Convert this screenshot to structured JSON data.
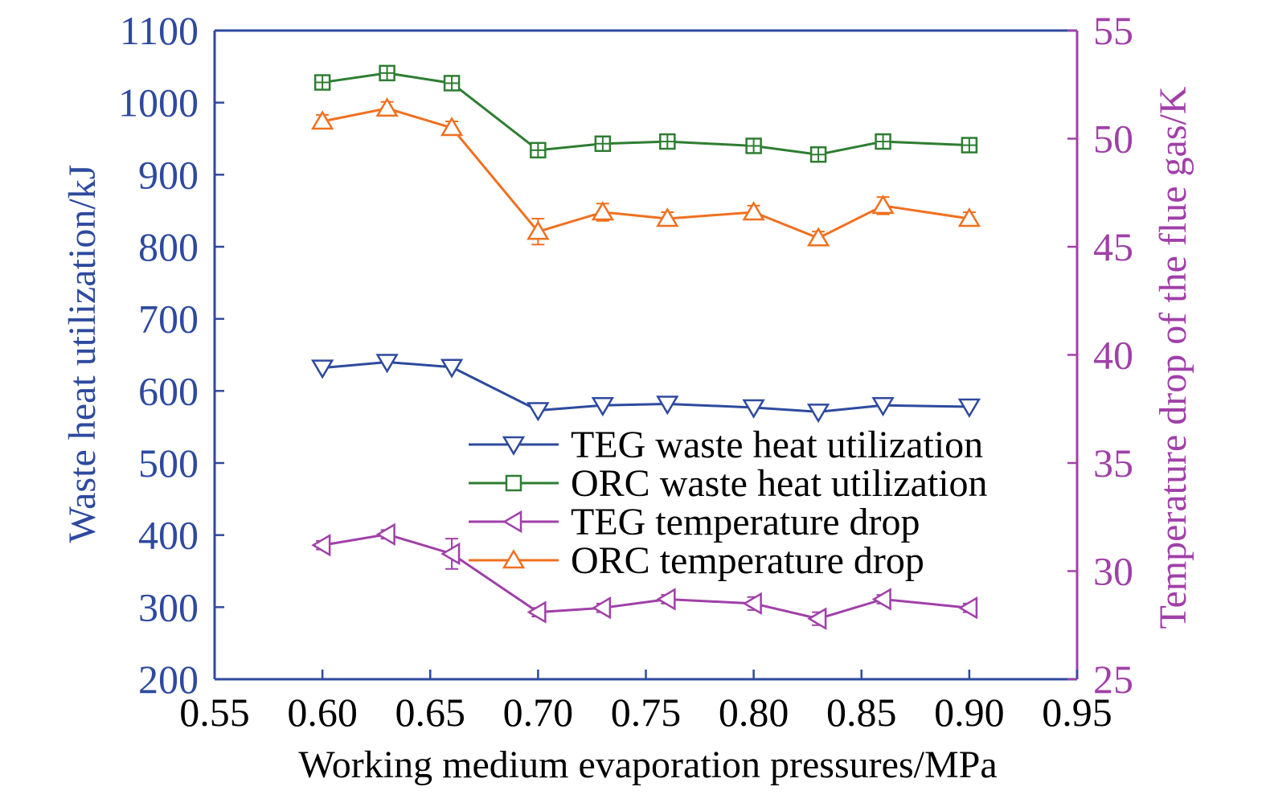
{
  "chart_data": {
    "type": "line",
    "title": "",
    "xlabel": "Working medium evaporation pressures/MPa",
    "ylabel_left": "Waste heat utilization/kJ",
    "ylabel_right": "Temperature drop of the flue gas/K",
    "xlim": [
      0.55,
      0.95
    ],
    "ylim_left": [
      200,
      1100
    ],
    "ylim_right": [
      25,
      55
    ],
    "x_ticks": [
      "0.55",
      "0.60",
      "0.65",
      "0.70",
      "0.75",
      "0.80",
      "0.85",
      "0.90",
      "0.95"
    ],
    "y_left_ticks": [
      "200",
      "300",
      "400",
      "500",
      "600",
      "700",
      "800",
      "900",
      "1000",
      "1100"
    ],
    "y_right_ticks": [
      "25",
      "30",
      "35",
      "40",
      "45",
      "50",
      "55"
    ],
    "grid": false,
    "legend_position": "center-right",
    "colors": {
      "left_axis": "#2e4a9e",
      "right_axis": "#a040a8",
      "frame": "#2e4a9e"
    },
    "x": [
      0.6,
      0.63,
      0.66,
      0.7,
      0.73,
      0.76,
      0.8,
      0.83,
      0.86,
      0.9
    ],
    "series": [
      {
        "name": "TEG waste heat utilization",
        "axis": "left",
        "color": "#2e4a9e",
        "marker": "triangle-down",
        "values": [
          632,
          640,
          633,
          573,
          580,
          582,
          577,
          571,
          580,
          578
        ]
      },
      {
        "name": "ORC waste heat utilization",
        "axis": "left",
        "color": "#2e7d32",
        "marker": "square-plus",
        "values": [
          1028,
          1041,
          1027,
          934,
          943,
          946,
          940,
          928,
          946,
          941
        ]
      },
      {
        "name": "TEG temperature drop",
        "axis": "right",
        "color": "#a040a8",
        "marker": "triangle-left",
        "values": [
          31.2,
          31.7,
          30.8,
          28.1,
          28.3,
          28.7,
          28.5,
          27.8,
          28.7,
          28.3
        ],
        "errors": [
          0.2,
          0.2,
          0.7,
          0.2,
          0.2,
          0.2,
          0.3,
          0.3,
          0.2,
          0.2
        ]
      },
      {
        "name": "ORC temperature drop",
        "axis": "right",
        "color": "#f07020",
        "marker": "triangle-up",
        "values": [
          50.8,
          51.4,
          50.5,
          45.7,
          46.6,
          46.3,
          46.6,
          45.4,
          46.9,
          46.3
        ],
        "errors": [
          0.3,
          0.3,
          0.3,
          0.6,
          0.4,
          0.3,
          0.3,
          0.3,
          0.4,
          0.3
        ]
      }
    ]
  }
}
